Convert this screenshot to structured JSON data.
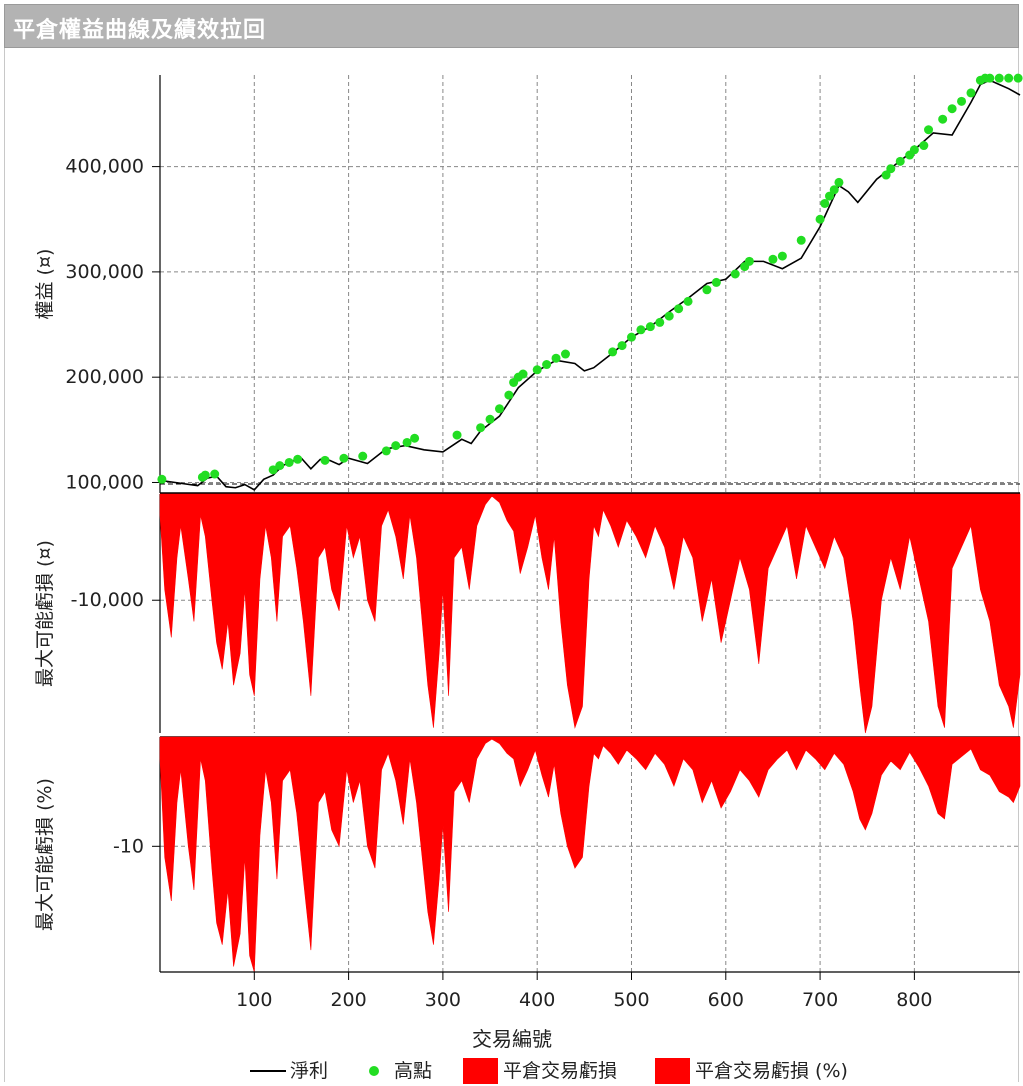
{
  "window": {
    "title": "平倉權益曲線及績效拉回"
  },
  "chart_data": [
    {
      "type": "line",
      "ylabel": "權益 (¤)",
      "xlabel": "交易編號",
      "xlim": [
        0,
        912
      ],
      "ylim": [
        90000,
        487000
      ],
      "x_ticks": [
        100,
        200,
        300,
        400,
        500,
        600,
        700,
        800
      ],
      "x_tick_labels": [
        "100",
        "200",
        "300",
        "400",
        "500",
        "600",
        "700",
        "800"
      ],
      "y_ticks": [
        100000,
        200000,
        300000,
        400000
      ],
      "y_tick_labels": [
        "100,000",
        "200,000",
        "300,000",
        "400,000"
      ],
      "grid": true,
      "series": [
        {
          "name": "淨利",
          "color": "#000000",
          "x": [
            0,
            40,
            50,
            60,
            70,
            80,
            90,
            100,
            110,
            120,
            130,
            140,
            150,
            160,
            170,
            180,
            190,
            200,
            220,
            240,
            260,
            280,
            300,
            320,
            330,
            340,
            360,
            380,
            400,
            420,
            440,
            450,
            460,
            480,
            500,
            520,
            540,
            560,
            580,
            600,
            620,
            640,
            660,
            680,
            700,
            720,
            730,
            740,
            760,
            780,
            800,
            820,
            840,
            860,
            870,
            880,
            890,
            900,
            912
          ],
          "y": [
            102000,
            97000,
            104000,
            106000,
            96000,
            95000,
            98000,
            93000,
            103000,
            107000,
            116000,
            120000,
            123000,
            113000,
            122000,
            121000,
            117000,
            123000,
            118000,
            132000,
            135000,
            131000,
            129000,
            141000,
            137000,
            149000,
            163000,
            190000,
            206000,
            216000,
            213000,
            206000,
            209000,
            223000,
            238000,
            248000,
            262000,
            275000,
            289000,
            293000,
            310000,
            310000,
            303000,
            313000,
            343000,
            382000,
            376000,
            366000,
            388000,
            402000,
            416000,
            432000,
            430000,
            461000,
            478000,
            482000,
            478000,
            474000,
            468000
          ]
        },
        {
          "name": "高點",
          "color": "#22dd22",
          "x": [
            2,
            45,
            48,
            58,
            120,
            127,
            137,
            146,
            175,
            195,
            215,
            240,
            250,
            262,
            270,
            315,
            340,
            350,
            360,
            370,
            375,
            380,
            385,
            400,
            410,
            420,
            430,
            480,
            490,
            500,
            510,
            520,
            530,
            540,
            550,
            560,
            580,
            590,
            610,
            620,
            625,
            650,
            660,
            680,
            700,
            705,
            710,
            715,
            720,
            770,
            775,
            785,
            795,
            800,
            810,
            815,
            830,
            840,
            850,
            860,
            870,
            875,
            880,
            890,
            900,
            910
          ],
          "y": [
            103000,
            105000,
            107000,
            108000,
            112000,
            116000,
            119000,
            122000,
            121000,
            123000,
            125000,
            130000,
            135000,
            138000,
            142000,
            145000,
            152000,
            160000,
            170000,
            183000,
            195000,
            200000,
            203000,
            207000,
            212000,
            218000,
            222000,
            224000,
            230000,
            238000,
            245000,
            248000,
            252000,
            258000,
            265000,
            272000,
            283000,
            290000,
            298000,
            305000,
            310000,
            312000,
            315000,
            330000,
            350000,
            365000,
            372000,
            378000,
            385000,
            392000,
            398000,
            405000,
            411000,
            416000,
            420000,
            435000,
            445000,
            455000,
            462000,
            470000,
            482000,
            484000,
            484000,
            484000,
            484000,
            484000
          ]
        }
      ]
    },
    {
      "type": "area",
      "ylabel": "最大可能虧損 (¤)",
      "xlim": [
        0,
        912
      ],
      "ylim": [
        -22500,
        0
      ],
      "y_ticks": [
        -10000
      ],
      "y_tick_labels": [
        "-10,000"
      ],
      "grid": true,
      "series": [
        {
          "name": "平倉交易虧損",
          "color": "#ff0000",
          "x": [
            0,
            5,
            12,
            18,
            22,
            30,
            36,
            43,
            48,
            55,
            60,
            66,
            72,
            78,
            85,
            90,
            95,
            100,
            106,
            112,
            118,
            124,
            130,
            138,
            145,
            152,
            160,
            168,
            175,
            182,
            190,
            198,
            205,
            212,
            220,
            228,
            235,
            242,
            250,
            258,
            265,
            272,
            278,
            284,
            290,
            296,
            300,
            306,
            312,
            320,
            328,
            336,
            345,
            352,
            360,
            368,
            375,
            382,
            390,
            398,
            405,
            412,
            418,
            425,
            432,
            440,
            448,
            455,
            460,
            465,
            470,
            478,
            486,
            495,
            505,
            515,
            525,
            535,
            545,
            555,
            565,
            575,
            585,
            595,
            605,
            615,
            625,
            635,
            645,
            655,
            665,
            675,
            685,
            695,
            705,
            715,
            725,
            735,
            742,
            748,
            755,
            765,
            775,
            785,
            795,
            805,
            815,
            825,
            832,
            840,
            850,
            860,
            870,
            880,
            890,
            900,
            905,
            912
          ],
          "y": [
            -2000,
            -9000,
            -13500,
            -6000,
            -3000,
            -8000,
            -12000,
            -2000,
            -4000,
            -10000,
            -14000,
            -16500,
            -12000,
            -18000,
            -15000,
            -9000,
            -17000,
            -19000,
            -8000,
            -3000,
            -6000,
            -12000,
            -4000,
            -3000,
            -7000,
            -12000,
            -19000,
            -6000,
            -5000,
            -9000,
            -11000,
            -3000,
            -6000,
            -4000,
            -10000,
            -12000,
            -3000,
            -1500,
            -4000,
            -8000,
            -2000,
            -6000,
            -12000,
            -18000,
            -22000,
            -15000,
            -9000,
            -19000,
            -6000,
            -5000,
            -9000,
            -3000,
            -1000,
            -200,
            -800,
            -2500,
            -3500,
            -7500,
            -5000,
            -2000,
            -6000,
            -9000,
            -4000,
            -12000,
            -18000,
            -22000,
            -20000,
            -8000,
            -3000,
            -4000,
            -1500,
            -3000,
            -5000,
            -2500,
            -4000,
            -6000,
            -3000,
            -5000,
            -9000,
            -4000,
            -6000,
            -12000,
            -8000,
            -14000,
            -10000,
            -6000,
            -9000,
            -16000,
            -7000,
            -5000,
            -3000,
            -8000,
            -3000,
            -5000,
            -7000,
            -4000,
            -6000,
            -12000,
            -18000,
            -22500,
            -20000,
            -10000,
            -6000,
            -9000,
            -4000,
            -8000,
            -12000,
            -20000,
            -22000,
            -7000,
            -5000,
            -3000,
            -9000,
            -12000,
            -18000,
            -20000,
            -22000,
            -17000
          ]
        }
      ]
    },
    {
      "type": "area",
      "ylabel": "最大可能虧損 (%)",
      "xlabel": "交易編號",
      "xlim": [
        0,
        912
      ],
      "ylim": [
        -21.5,
        0
      ],
      "y_ticks": [
        -10
      ],
      "y_tick_labels": [
        "-10"
      ],
      "x_ticks": [
        100,
        200,
        300,
        400,
        500,
        600,
        700,
        800
      ],
      "x_tick_labels": [
        "100",
        "200",
        "300",
        "400",
        "500",
        "600",
        "700",
        "800"
      ],
      "grid": true,
      "series": [
        {
          "name": "平倉交易虧損 (%)",
          "color": "#ff0000",
          "x": [
            0,
            5,
            12,
            18,
            22,
            30,
            36,
            43,
            48,
            55,
            60,
            66,
            72,
            78,
            85,
            90,
            95,
            100,
            106,
            112,
            118,
            124,
            130,
            138,
            145,
            152,
            160,
            168,
            175,
            182,
            190,
            198,
            205,
            212,
            220,
            228,
            235,
            242,
            250,
            258,
            265,
            272,
            278,
            284,
            290,
            296,
            300,
            306,
            312,
            320,
            328,
            336,
            345,
            352,
            360,
            368,
            375,
            382,
            390,
            398,
            405,
            412,
            418,
            425,
            432,
            440,
            448,
            455,
            460,
            465,
            470,
            478,
            486,
            495,
            505,
            515,
            525,
            535,
            545,
            555,
            565,
            575,
            585,
            595,
            605,
            615,
            625,
            635,
            645,
            655,
            665,
            675,
            685,
            695,
            705,
            715,
            725,
            735,
            742,
            748,
            755,
            765,
            775,
            785,
            795,
            805,
            815,
            825,
            832,
            840,
            850,
            860,
            870,
            880,
            890,
            900,
            905,
            912
          ],
          "y": [
            -2,
            -11,
            -15,
            -6,
            -3,
            -10,
            -14,
            -2,
            -4,
            -12,
            -17,
            -19,
            -14,
            -21,
            -18,
            -11,
            -20,
            -21.5,
            -9,
            -3,
            -6,
            -13,
            -4,
            -3,
            -7,
            -13,
            -19.5,
            -6,
            -5,
            -8.5,
            -10,
            -3,
            -6,
            -4,
            -10,
            -12,
            -3,
            -1.5,
            -4,
            -8,
            -2,
            -6,
            -11,
            -16,
            -19,
            -13,
            -8,
            -16,
            -5,
            -4,
            -6,
            -2,
            -0.6,
            -0.2,
            -0.6,
            -1.5,
            -2,
            -4.5,
            -3,
            -1.2,
            -3.5,
            -5.5,
            -2.5,
            -7,
            -10,
            -12,
            -11,
            -4.5,
            -1.5,
            -2,
            -0.8,
            -1.5,
            -2.5,
            -1.2,
            -2,
            -3,
            -1.5,
            -2.5,
            -4.5,
            -2,
            -3,
            -6,
            -4,
            -6.5,
            -5,
            -3,
            -4,
            -5.5,
            -3,
            -2,
            -1.2,
            -3,
            -1.2,
            -2,
            -3,
            -1.5,
            -2.5,
            -5,
            -7.5,
            -8.5,
            -7,
            -3.5,
            -2.2,
            -3,
            -1.4,
            -2.8,
            -4.5,
            -7,
            -7.5,
            -2.5,
            -1.8,
            -1.1,
            -3,
            -3.5,
            -5,
            -5.5,
            -6,
            -4.5
          ]
        }
      ]
    }
  ],
  "legend": [
    {
      "label": "淨利",
      "kind": "line",
      "color": "#000000"
    },
    {
      "label": "高點",
      "kind": "marker",
      "color": "#22dd22"
    },
    {
      "label": "平倉交易虧損",
      "kind": "box",
      "color": "#ff0000"
    },
    {
      "label": "平倉交易虧損 (%)",
      "kind": "box",
      "color": "#ff0000"
    }
  ]
}
